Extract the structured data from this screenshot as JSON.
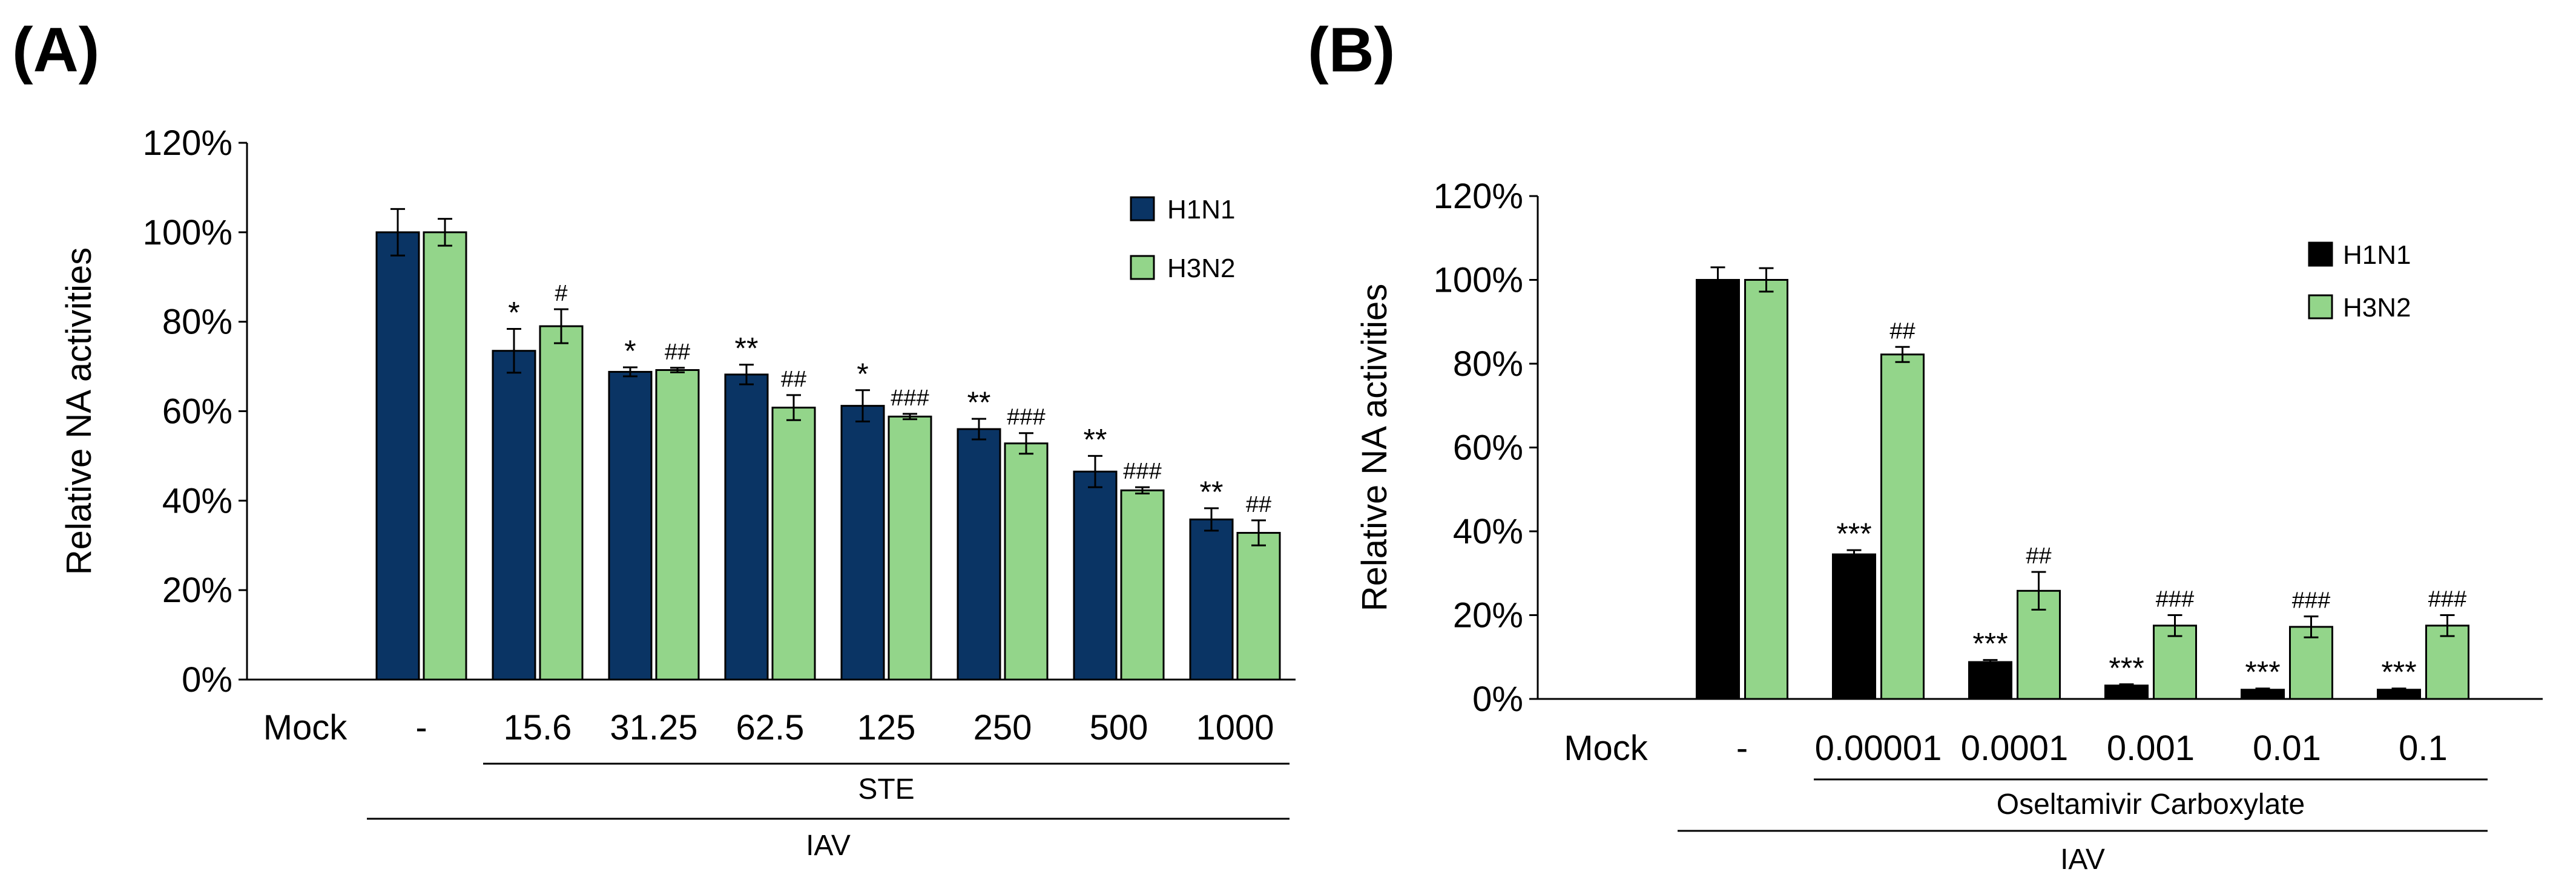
{
  "colors": {
    "a_h1n1": "#0a3464",
    "a_h3n2": "#93d58a",
    "b_h1n1": "#000000",
    "b_h3n2": "#93d58a",
    "axis": "#000000"
  },
  "chart_data": [
    {
      "panel": "(A)",
      "type": "bar",
      "title": "",
      "xlabel": "",
      "ylabel": "Relative NA activities",
      "ylim": [
        0,
        120
      ],
      "yticks": [
        "0%",
        "20%",
        "40%",
        "60%",
        "80%",
        "100%",
        "120%"
      ],
      "categories": [
        "Mock",
        "-",
        "15.6",
        "31.25",
        "62.5",
        "125",
        "250",
        "500",
        "1000"
      ],
      "legend": "top-right",
      "series": [
        {
          "name": "H1N1",
          "values": [
            0,
            100,
            73.5,
            68.8,
            68.2,
            61.2,
            56.0,
            46.5,
            35.8
          ],
          "errors": [
            0,
            5.2,
            4.9,
            1.0,
            2.2,
            3.5,
            2.3,
            3.5,
            2.5
          ],
          "sig": [
            "",
            "",
            "*",
            "*",
            "**",
            "*",
            "**",
            "**",
            "**"
          ]
        },
        {
          "name": "H3N2",
          "values": [
            0,
            100,
            79.0,
            69.2,
            60.8,
            58.8,
            52.8,
            42.3,
            32.8
          ],
          "errors": [
            0,
            3.0,
            3.8,
            0.5,
            2.8,
            0.6,
            2.3,
            0.7,
            2.8
          ],
          "sig": [
            "",
            "",
            "#",
            "##",
            "##",
            "###",
            "###",
            "###",
            "##"
          ]
        }
      ],
      "brackets": [
        {
          "label": "STE",
          "from": 2,
          "to": 8
        },
        {
          "label": "IAV",
          "from": 1,
          "to": 8
        }
      ]
    },
    {
      "panel": "(B)",
      "type": "bar",
      "title": "",
      "xlabel": "",
      "ylabel": "Relative NA activities",
      "ylim": [
        0,
        120
      ],
      "yticks": [
        "0%",
        "20%",
        "40%",
        "60%",
        "80%",
        "100%",
        "120%"
      ],
      "categories": [
        "Mock",
        "-",
        "0.00001",
        "0.0001",
        "0.001",
        "0.01",
        "0.1"
      ],
      "legend": "top-right",
      "series": [
        {
          "name": "H1N1",
          "values": [
            0,
            100,
            34.5,
            8.8,
            3.2,
            2.2,
            2.2
          ],
          "errors": [
            0,
            3.0,
            1.0,
            0.5,
            0.3,
            0.3,
            0.3
          ],
          "sig": [
            "",
            "",
            "***",
            "***",
            "***",
            "***",
            "***"
          ]
        },
        {
          "name": "H3N2",
          "values": [
            0,
            100,
            82.2,
            25.8,
            17.5,
            17.2,
            17.5
          ],
          "errors": [
            0,
            2.8,
            1.8,
            4.5,
            2.5,
            2.5,
            2.5
          ],
          "sig": [
            "",
            "",
            "##",
            "##",
            "###",
            "###",
            "###"
          ]
        }
      ],
      "brackets": [
        {
          "label": "Oseltamivir  Carboxylate",
          "from": 2,
          "to": 6
        },
        {
          "label": "IAV",
          "from": 1,
          "to": 6
        }
      ]
    }
  ]
}
